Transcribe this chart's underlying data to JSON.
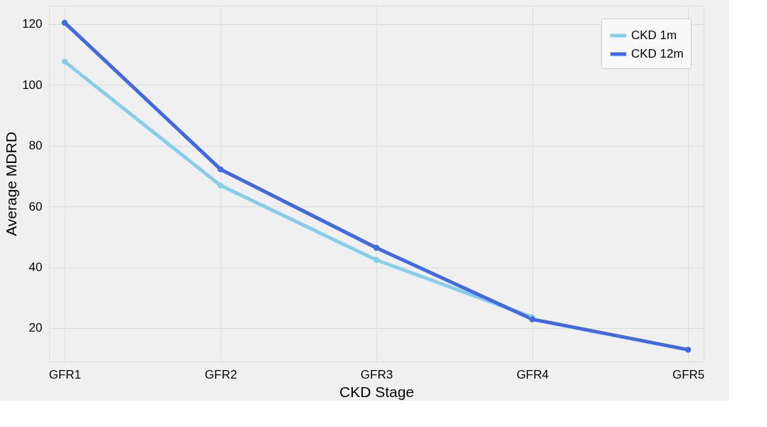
{
  "chart_data": {
    "type": "line",
    "xlabel": "CKD Stage",
    "ylabel": "Average MDRD",
    "categories": [
      "GFR1",
      "GFR2",
      "GFR3",
      "GFR4",
      "GFR5"
    ],
    "series": [
      {
        "name": "CKD 1m",
        "color": "#87ceeb",
        "values": [
          107.6,
          66.9,
          42.4,
          23.6,
          null
        ]
      },
      {
        "name": "CKD 12m",
        "color": "#4169e1",
        "values": [
          120.4,
          72.2,
          46.4,
          22.9,
          12.9
        ]
      }
    ],
    "ylim": [
      9,
      126
    ],
    "yticks": [
      20,
      40,
      60,
      80,
      100,
      120
    ],
    "grid": true,
    "legend": "top right",
    "marker": "circle",
    "line_style": "solid"
  }
}
